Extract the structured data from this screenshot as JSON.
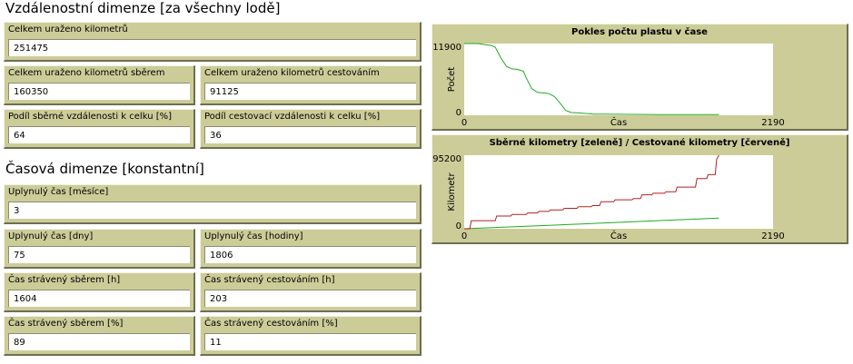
{
  "distance": {
    "heading": "Vzdálenostní dimenze [za všechny lodě]",
    "total_km": {
      "label": "Celkem uraženo kilometrů",
      "value": "251475"
    },
    "collect_km": {
      "label": "Celkem uraženo kilometrů sběrem",
      "value": "160350"
    },
    "travel_km": {
      "label": "Celkem uraženo kilometrů cestováním",
      "value": "91125"
    },
    "collect_share": {
      "label": "Podíl sběrné vzdálenosti k celku [%]",
      "value": "64"
    },
    "travel_share": {
      "label": "Podíl cestovací vzdálenosti k celku [%]",
      "value": "36"
    }
  },
  "time": {
    "heading": "Časová dimenze [konstantní]",
    "months": {
      "label": "Uplynulý čas [měsíce]",
      "value": "3"
    },
    "days": {
      "label": "Uplynulý čas [dny]",
      "value": "75"
    },
    "hours": {
      "label": "Uplynulý čas [hodiny]",
      "value": "1806"
    },
    "collect_h": {
      "label": "Čas strávený sběrem [h]",
      "value": "1604"
    },
    "travel_h": {
      "label": "Čas strávený cestováním [h]",
      "value": "203"
    },
    "collect_pct": {
      "label": "Čas strávený sběrem [%]",
      "value": "89"
    },
    "travel_pct": {
      "label": "Čas strávený cestováním [%]",
      "value": "11"
    }
  },
  "chart_data": [
    {
      "type": "line",
      "title": "Pokles počtu plastu v čase",
      "xlabel": "Čas",
      "ylabel": "Počet",
      "xlim": [
        0,
        2190
      ],
      "ylim": [
        0,
        11900
      ],
      "xlim_labels": [
        "0",
        "2190"
      ],
      "ylim_labels": [
        "0",
        "11900"
      ],
      "legend": "none",
      "series": [
        {
          "color": "#22aa22",
          "x": [
            0,
            100,
            150,
            190,
            220,
            260,
            300,
            340,
            380,
            420,
            440,
            480,
            520,
            560,
            600,
            640,
            680,
            720,
            760,
            800,
            840,
            880,
            920,
            1000,
            1200,
            1400,
            1600,
            1806
          ],
          "y": [
            11900,
            11900,
            11700,
            11600,
            11300,
            9500,
            8100,
            7700,
            7600,
            7300,
            6200,
            4400,
            3800,
            3700,
            3600,
            3100,
            2000,
            800,
            450,
            400,
            350,
            250,
            200,
            180,
            150,
            120,
            100,
            100
          ]
        }
      ]
    },
    {
      "type": "line",
      "title": "Sběrné kilometry [zeleně] / Cestované kilometry [červeně]",
      "xlabel": "Čas",
      "ylabel": "Kilometr",
      "xlim": [
        0,
        2190
      ],
      "ylim": [
        0,
        95200
      ],
      "xlim_labels": [
        "0",
        "2190"
      ],
      "ylim_labels": [
        "0",
        "95200"
      ],
      "legend": "none",
      "series": [
        {
          "color": "#22aa22",
          "x": [
            0,
            300,
            600,
            900,
            1200,
            1500,
            1806
          ],
          "y": [
            0,
            2200,
            4400,
            6700,
            9000,
            11400,
            13700
          ]
        },
        {
          "color": "#b22222",
          "x": [
            0,
            40,
            50,
            220,
            230,
            330,
            340,
            440,
            450,
            520,
            530,
            600,
            610,
            700,
            710,
            800,
            810,
            900,
            910,
            960,
            970,
            1060,
            1070,
            1190,
            1200,
            1250,
            1260,
            1330,
            1340,
            1420,
            1430,
            1500,
            1510,
            1640,
            1650,
            1720,
            1730,
            1780,
            1790,
            1806
          ],
          "y": [
            0,
            0,
            10500,
            10500,
            16500,
            16500,
            18500,
            18500,
            20500,
            20500,
            22500,
            22500,
            24500,
            24500,
            26500,
            26500,
            28500,
            28500,
            30000,
            30000,
            35000,
            35000,
            37500,
            37500,
            39000,
            39000,
            44000,
            44000,
            46000,
            46000,
            48000,
            48000,
            54000,
            54000,
            65000,
            65000,
            70000,
            70000,
            90000,
            95200
          ]
        }
      ]
    }
  ]
}
